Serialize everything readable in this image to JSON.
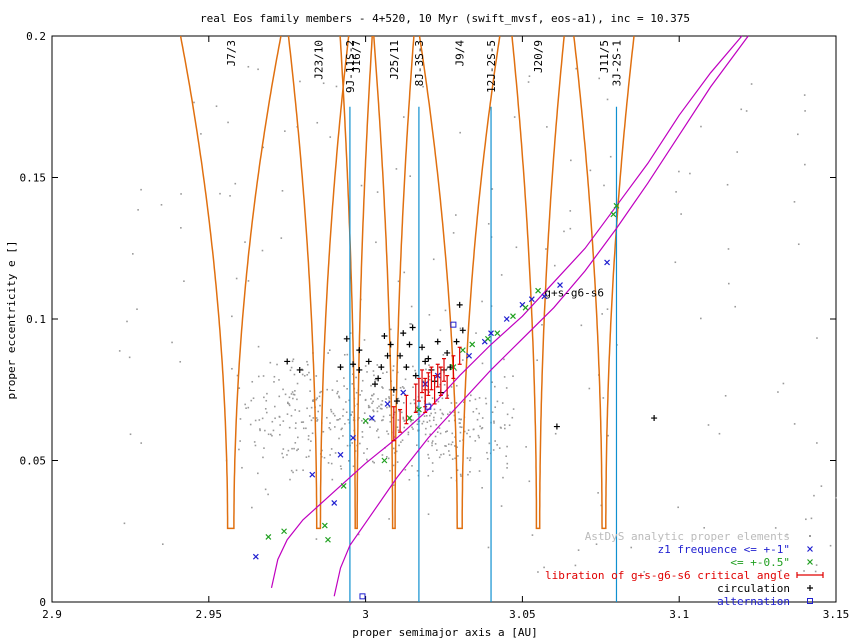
{
  "chart_data": {
    "type": "scatter",
    "title": "real Eos family members - 4+520, 10 Myr (swift_mvsf, eos-a1), inc = 10.375",
    "xlabel": "proper semimajor axis a [AU]",
    "ylabel": "proper eccentricity e []",
    "xlim": [
      2.9,
      3.15
    ],
    "ylim": [
      0,
      0.2
    ],
    "xticks": [
      2.9,
      2.95,
      3.0,
      3.05,
      3.1,
      3.15
    ],
    "xtick_labels": [
      "2.9",
      "2.95",
      "3",
      "3.05",
      "3.1",
      "3.15"
    ],
    "yticks": [
      0,
      0.05,
      0.1,
      0.15,
      0.2
    ],
    "ytick_labels": [
      "0",
      "0.05",
      "0.1",
      "0.15",
      "0.2"
    ],
    "grid": false,
    "legend_position": "bottom-right",
    "colors": {
      "background_points": "#9a9a9a",
      "z1_1": "#2020d0",
      "z1_05": "#20a020",
      "libration": "#e00000",
      "circulation": "#000000",
      "alternation": "#2020d0",
      "mmr_border": "#e07010",
      "three_body": "#1090d0",
      "secular": "#c000c0"
    },
    "legend": [
      {
        "label": "AstDyS analytic proper elements",
        "color": "#bbbbbb",
        "marker": "·"
      },
      {
        "label": "z1 frequence <= +-1\"",
        "color": "#2020d0",
        "marker": "×"
      },
      {
        "label": "<= +-0.5\"",
        "color": "#20a020",
        "marker": "×"
      },
      {
        "label": "libration of g+s-g6-s6 critical angle",
        "color": "#e00000",
        "marker": "errorbar"
      },
      {
        "label": "circulation",
        "color": "#000000",
        "marker": "+"
      },
      {
        "label": "alternation",
        "color": "#2020d0",
        "marker": "□"
      }
    ],
    "secular_resonance_label": "g+s-g6-s6",
    "mmr_resonances": [
      {
        "name": "J7/3",
        "a": 2.957,
        "half_width": 0.0025
      },
      {
        "name": "J23/10",
        "a": 2.985,
        "half_width": 0.0015
      },
      {
        "name": "J16/7",
        "a": 2.997,
        "half_width": 0.0008
      },
      {
        "name": "J25/11",
        "a": 3.009,
        "half_width": 0.001
      },
      {
        "name": "J9/4",
        "a": 3.03,
        "half_width": 0.002
      },
      {
        "name": "J20/9",
        "a": 3.055,
        "half_width": 0.0013
      },
      {
        "name": "J11/5",
        "a": 3.076,
        "half_width": 0.0015
      }
    ],
    "three_body_resonances": [
      {
        "name": "9J-11S-2",
        "a": 2.995,
        "e_top": 0.175
      },
      {
        "name": "8J-3S-3",
        "a": 3.017,
        "e_top": 0.175
      },
      {
        "name": "12J-2S-5",
        "a": 3.04,
        "e_top": 0.175
      },
      {
        "name": "3J-2S-1",
        "a": 3.08,
        "e_top": 0.175
      }
    ],
    "circulation": [
      [
        2.975,
        0.085
      ],
      [
        2.979,
        0.082
      ],
      [
        2.992,
        0.083
      ],
      [
        2.996,
        0.084
      ],
      [
        3.001,
        0.085
      ],
      [
        3.003,
        0.077
      ],
      [
        3.005,
        0.083
      ],
      [
        3.007,
        0.087
      ],
      [
        3.009,
        0.075
      ],
      [
        3.011,
        0.087
      ],
      [
        3.013,
        0.083
      ],
      [
        3.016,
        0.08
      ],
      [
        3.018,
        0.09
      ],
      [
        3.02,
        0.086
      ],
      [
        3.022,
        0.078
      ],
      [
        3.024,
        0.074
      ],
      [
        3.026,
        0.088
      ],
      [
        3.027,
        0.083
      ],
      [
        3.029,
        0.092
      ],
      [
        3.03,
        0.105
      ],
      [
        3.031,
        0.096
      ],
      [
        2.994,
        0.093
      ],
      [
        2.998,
        0.082
      ],
      [
        3.006,
        0.094
      ],
      [
        3.012,
        0.095
      ],
      [
        3.014,
        0.091
      ],
      [
        3.019,
        0.085
      ],
      [
        3.023,
        0.092
      ],
      [
        3.061,
        0.062
      ],
      [
        3.092,
        0.065
      ],
      [
        3.01,
        0.071
      ],
      [
        3.004,
        0.079
      ],
      [
        2.998,
        0.089
      ],
      [
        3.008,
        0.091
      ],
      [
        3.015,
        0.097
      ],
      [
        3.021,
        0.082
      ],
      [
        3.025,
        0.082
      ]
    ],
    "z1_1": [
      [
        2.965,
        0.016
      ],
      [
        2.983,
        0.045
      ],
      [
        2.996,
        0.058
      ],
      [
        3.007,
        0.07
      ],
      [
        3.012,
        0.074
      ],
      [
        3.019,
        0.077
      ],
      [
        3.023,
        0.08
      ],
      [
        3.033,
        0.087
      ],
      [
        3.038,
        0.092
      ],
      [
        3.045,
        0.1
      ],
      [
        3.053,
        0.107
      ],
      [
        3.062,
        0.112
      ],
      [
        3.077,
        0.12
      ],
      [
        2.99,
        0.035
      ],
      [
        2.992,
        0.052
      ],
      [
        3.002,
        0.065
      ],
      [
        3.04,
        0.095
      ],
      [
        3.05,
        0.105
      ],
      [
        3.057,
        0.108
      ]
    ],
    "z1_05": [
      [
        2.969,
        0.023
      ],
      [
        2.974,
        0.025
      ],
      [
        2.987,
        0.027
      ],
      [
        2.988,
        0.022
      ],
      [
        2.993,
        0.041
      ],
      [
        3.006,
        0.05
      ],
      [
        3.014,
        0.065
      ],
      [
        3.017,
        0.068
      ],
      [
        3.028,
        0.083
      ],
      [
        3.031,
        0.089
      ],
      [
        3.034,
        0.091
      ],
      [
        3.039,
        0.093
      ],
      [
        3.042,
        0.095
      ],
      [
        3.047,
        0.101
      ],
      [
        3.051,
        0.104
      ],
      [
        3.055,
        0.11
      ],
      [
        3.079,
        0.137
      ],
      [
        3.08,
        0.14
      ],
      [
        3.0,
        0.064
      ]
    ],
    "libration": [
      [
        3.009,
        0.063,
        0.006
      ],
      [
        3.011,
        0.064,
        0.004
      ],
      [
        3.016,
        0.072,
        0.005
      ],
      [
        3.017,
        0.075,
        0.004
      ],
      [
        3.018,
        0.078,
        0.004
      ],
      [
        3.019,
        0.074,
        0.005
      ],
      [
        3.02,
        0.077,
        0.004
      ],
      [
        3.021,
        0.079,
        0.004
      ],
      [
        3.022,
        0.075,
        0.005
      ],
      [
        3.023,
        0.08,
        0.004
      ],
      [
        3.024,
        0.078,
        0.005
      ],
      [
        3.025,
        0.082,
        0.004
      ],
      [
        3.026,
        0.076,
        0.004
      ],
      [
        3.019,
        0.071,
        0.004
      ],
      [
        3.028,
        0.083,
        0.004
      ],
      [
        3.03,
        0.087,
        0.003
      ],
      [
        3.013,
        0.068,
        0.005
      ]
    ],
    "alternation": [
      [
        3.028,
        0.098
      ],
      [
        2.999,
        0.002
      ],
      [
        3.02,
        0.069
      ]
    ],
    "secular_curve_upper": [
      [
        2.97,
        0.005
      ],
      [
        2.972,
        0.015
      ],
      [
        2.975,
        0.022
      ],
      [
        2.98,
        0.029
      ],
      [
        2.99,
        0.039
      ],
      [
        3.0,
        0.049
      ],
      [
        3.01,
        0.058
      ],
      [
        3.02,
        0.068
      ],
      [
        3.03,
        0.08
      ],
      [
        3.04,
        0.091
      ],
      [
        3.05,
        0.101
      ],
      [
        3.06,
        0.113
      ],
      [
        3.07,
        0.125
      ],
      [
        3.08,
        0.14
      ],
      [
        3.09,
        0.155
      ],
      [
        3.1,
        0.172
      ],
      [
        3.11,
        0.187
      ],
      [
        3.12,
        0.2
      ]
    ],
    "secular_curve_lower": [
      [
        2.99,
        0.002
      ],
      [
        2.992,
        0.012
      ],
      [
        2.995,
        0.02
      ],
      [
        3.0,
        0.028
      ],
      [
        3.01,
        0.044
      ],
      [
        3.02,
        0.058
      ],
      [
        3.03,
        0.07
      ],
      [
        3.04,
        0.082
      ],
      [
        3.05,
        0.093
      ],
      [
        3.06,
        0.104
      ],
      [
        3.07,
        0.117
      ],
      [
        3.08,
        0.132
      ],
      [
        3.09,
        0.148
      ],
      [
        3.1,
        0.165
      ],
      [
        3.11,
        0.182
      ],
      [
        3.122,
        0.2
      ]
    ]
  }
}
